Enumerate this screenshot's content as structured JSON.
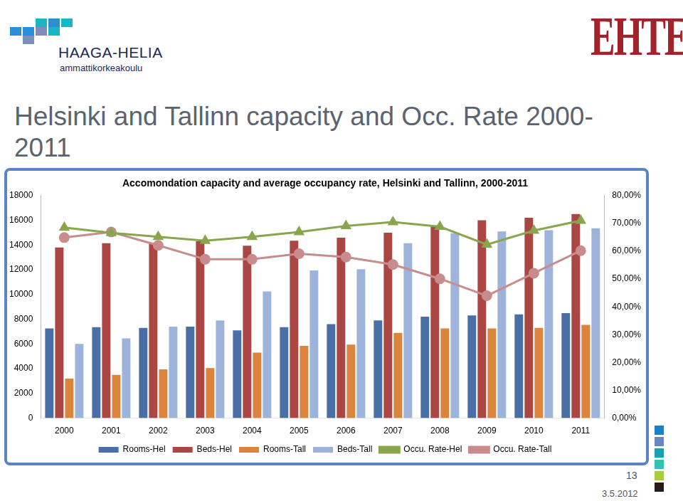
{
  "slide": {
    "title": "Helsinki and Tallinn capacity and Occ. Rate 2000-2011",
    "logo_left": "HAAGA-HELIA",
    "logo_left_subtitle": "ammattikorkeakoulu",
    "logo_right": "EHTE",
    "page_number": "13",
    "date": "3.5.2012"
  },
  "chart_data": {
    "type": "bar",
    "title": "Accomondation capacity and average occupancy rate, Helsinki and Tallinn, 2000-2011",
    "categories": [
      "2000",
      "2001",
      "2002",
      "2003",
      "2004",
      "2005",
      "2006",
      "2007",
      "2008",
      "2009",
      "2010",
      "2011"
    ],
    "series": [
      {
        "name": "Rooms-Hel",
        "color": "#4a6fa5",
        "values": [
          7250,
          7350,
          7300,
          7400,
          7100,
          7350,
          7600,
          7900,
          8200,
          8300,
          8400,
          8500
        ]
      },
      {
        "name": "Beds-Hel",
        "color": "#aa4643",
        "values": [
          13800,
          14150,
          14100,
          14300,
          13950,
          14350,
          14600,
          15000,
          15500,
          16000,
          16200,
          16500
        ]
      },
      {
        "name": "Rooms-Tall",
        "color": "#db843d",
        "values": [
          3200,
          3500,
          3950,
          4050,
          5300,
          5850,
          5950,
          6900,
          7250,
          7250,
          7300,
          7550
        ]
      },
      {
        "name": "Beds-Tall",
        "color": "#9db3d9",
        "values": [
          6000,
          6450,
          7400,
          7900,
          10250,
          11950,
          12050,
          14150,
          14950,
          15100,
          15200,
          15350
        ]
      },
      {
        "name": "Occu. Rate-Hel",
        "color": "#89a54e",
        "type": "line",
        "marker": "triangle",
        "axis": "y2",
        "values": [
          68.5,
          66.6,
          65.2,
          63.8,
          65.2,
          66.9,
          69.1,
          70.5,
          68.8,
          62.4,
          67.4,
          71.0
        ]
      },
      {
        "name": "Occu. Rate-Tall",
        "color": "#c98c8c",
        "type": "line",
        "marker": "circle",
        "axis": "y2",
        "values": [
          64.9,
          66.9,
          62.1,
          57.1,
          57.1,
          59.1,
          57.9,
          55.2,
          50.1,
          44.0,
          52.1,
          60.2
        ]
      }
    ],
    "ylim": [
      0,
      18000
    ],
    "yticks": [
      0,
      2000,
      4000,
      6000,
      8000,
      10000,
      12000,
      14000,
      16000,
      18000
    ],
    "y2lim": [
      0,
      80
    ],
    "y2ticks": [
      {
        "value": 0,
        "label": "0,00%"
      },
      {
        "value": 10,
        "label": "10,00%"
      },
      {
        "value": 20,
        "label": "20,00%"
      },
      {
        "value": 30,
        "label": "30,00%"
      },
      {
        "value": 40,
        "label": "40,00%"
      },
      {
        "value": 50,
        "label": "50,00%"
      },
      {
        "value": 60,
        "label": "60,00%"
      },
      {
        "value": 70,
        "label": "70,00%"
      },
      {
        "value": 80,
        "label": "80,00%"
      }
    ],
    "grid": false,
    "legend": "bottom"
  }
}
